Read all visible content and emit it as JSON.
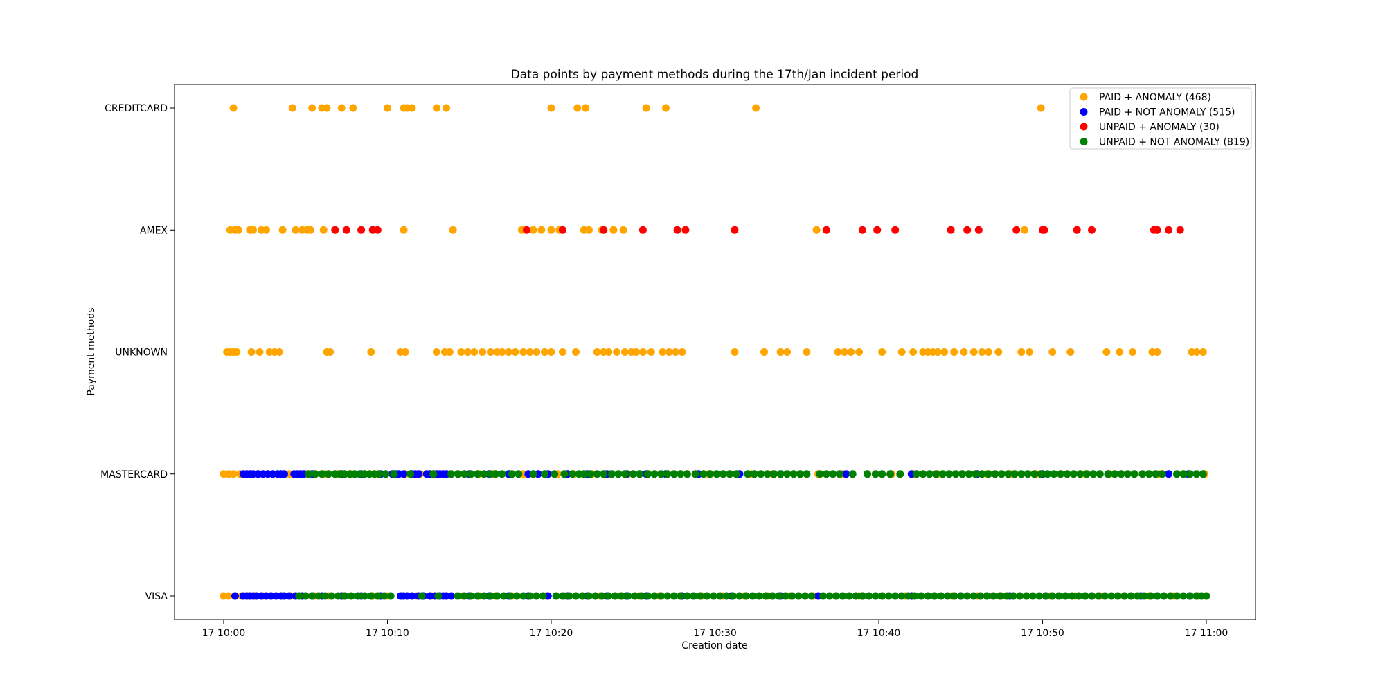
{
  "chart_data": {
    "type": "scatter",
    "title": "Data points by payment methods during the 17th/Jan incident period",
    "xlabel": "Creation date",
    "ylabel": "Payment methods",
    "x_unit": "minutes after 17 10:00",
    "xlim": [
      -3,
      63
    ],
    "x_ticks": [
      {
        "value": 0,
        "label": "17 10:00"
      },
      {
        "value": 10,
        "label": "17 10:10"
      },
      {
        "value": 20,
        "label": "17 10:20"
      },
      {
        "value": 30,
        "label": "17 10:30"
      },
      {
        "value": 40,
        "label": "17 10:40"
      },
      {
        "value": 50,
        "label": "17 10:50"
      },
      {
        "value": 60,
        "label": "17 11:00"
      }
    ],
    "categories": [
      "VISA",
      "MASTERCARD",
      "UNKNOWN",
      "AMEX",
      "CREDITCARD"
    ],
    "grid": false,
    "legend_position": "top-right",
    "series": [
      {
        "name": "PAID + ANOMALY (468)",
        "color": "#ffa500",
        "points": {
          "CREDITCARD": [
            0.6,
            4.2,
            5.4,
            6.0,
            6.3,
            7.2,
            7.9,
            10.0,
            11.0,
            11.2,
            11.5,
            13.0,
            13.6,
            20.0,
            21.6,
            22.1,
            25.8,
            27.0,
            32.5,
            49.9
          ],
          "AMEX": [
            0.4,
            0.7,
            0.9,
            1.6,
            1.8,
            2.3,
            2.6,
            3.6,
            4.4,
            4.8,
            5.1,
            5.3,
            6.1,
            11.0,
            14.0,
            18.2,
            18.9,
            19.4,
            20.0,
            20.5,
            22.0,
            22.3,
            23.1,
            23.8,
            24.4,
            36.2,
            48.9,
            57.0
          ],
          "UNKNOWN": [
            0.2,
            0.4,
            0.6,
            0.8,
            1.7,
            2.2,
            2.8,
            3.1,
            3.4,
            6.3,
            6.5,
            9.0,
            10.8,
            11.1,
            13.0,
            13.5,
            13.8,
            14.5,
            14.9,
            15.3,
            15.8,
            16.3,
            16.7,
            17.0,
            17.4,
            17.8,
            18.3,
            18.7,
            19.1,
            19.6,
            20.0,
            20.7,
            21.5,
            22.8,
            23.2,
            23.5,
            24.0,
            24.5,
            24.9,
            25.2,
            25.6,
            26.1,
            26.8,
            27.2,
            27.6,
            28.0,
            31.2,
            33.0,
            34.0,
            34.4,
            35.6,
            37.5,
            37.9,
            38.3,
            38.8,
            40.2,
            41.4,
            42.1,
            42.7,
            43.0,
            43.3,
            43.6,
            44.0,
            44.6,
            45.2,
            45.8,
            46.3,
            46.7,
            47.3,
            48.7,
            49.2,
            50.6,
            51.7,
            53.9,
            54.7,
            55.5,
            56.7,
            57.0,
            59.1,
            59.4,
            59.8
          ],
          "MASTERCARD": [
            0.0,
            0.3,
            0.6,
            1.0,
            1.4,
            2.1,
            2.7,
            3.3,
            4.0,
            4.6,
            5.1,
            5.6,
            6.2,
            7.0,
            7.8,
            8.6,
            9.4,
            10.3,
            11.1,
            12.0,
            12.9,
            13.8,
            14.7,
            15.6,
            16.5,
            17.4,
            18.3,
            19.2,
            20.4,
            21.4,
            22.5,
            23.6,
            24.7,
            25.9,
            27.1,
            28.3,
            29.6,
            30.9,
            32.2,
            33.5,
            34.8,
            36.3,
            37.8,
            39.3,
            40.8,
            42.1,
            43.6,
            45.1,
            46.6,
            48.1,
            49.6,
            51.1,
            52.6,
            54.1,
            55.6,
            57.1,
            58.6,
            59.9
          ],
          "VISA": [
            0.0,
            0.3,
            0.7,
            1.1,
            1.5,
            1.9,
            2.4,
            2.9,
            3.5,
            4.1,
            4.8,
            5.6,
            6.4,
            7.3,
            8.2,
            9.1,
            10.0,
            10.9,
            11.8,
            12.7,
            13.6,
            14.6,
            15.6,
            16.6,
            17.6,
            18.6,
            19.7,
            20.8,
            21.9,
            23.0,
            24.2,
            25.4,
            26.6,
            27.9,
            29.2,
            30.5,
            31.8,
            33.2,
            34.6,
            36.0,
            37.4,
            38.8,
            40.2,
            41.6,
            43.0,
            44.5,
            46.0,
            47.5,
            49.0,
            50.5,
            52.0,
            53.5,
            55.0,
            56.5,
            58.0,
            59.5
          ]
        }
      },
      {
        "name": "PAID + NOT ANOMALY (515)",
        "color": "#0000ff",
        "points": {
          "CREDITCARD": [],
          "AMEX": [],
          "UNKNOWN": [],
          "MASTERCARD": [
            1.2,
            1.4,
            1.6,
            1.8,
            2.1,
            2.4,
            2.7,
            3.0,
            3.3,
            3.5,
            3.7,
            4.3,
            4.5,
            4.7,
            4.9,
            5.4,
            7.2,
            8.4,
            9.6,
            10.3,
            10.5,
            10.7,
            11.0,
            11.5,
            11.7,
            11.9,
            12.4,
            12.6,
            13.0,
            13.2,
            13.4,
            13.6,
            15.0,
            16.2,
            17.4,
            18.6,
            19.2,
            19.8,
            21.0,
            22.2,
            23.4,
            24.6,
            25.8,
            27.0,
            29.0,
            31.5,
            34.0,
            38.0,
            42.0,
            46.0,
            50.0,
            54.0,
            57.7,
            58.9
          ],
          "VISA": [
            0.7,
            1.2,
            1.4,
            1.6,
            1.8,
            2.0,
            2.3,
            2.6,
            2.9,
            3.2,
            3.5,
            3.7,
            4.0,
            4.4,
            4.8,
            5.4,
            6.0,
            7.2,
            8.4,
            9.6,
            10.8,
            11.0,
            11.2,
            11.5,
            11.9,
            12.2,
            12.6,
            12.9,
            13.2,
            13.4,
            13.6,
            13.9,
            15.0,
            16.2,
            17.4,
            18.6,
            19.8,
            21.0,
            22.2,
            23.4,
            24.6,
            25.8,
            28.0,
            31.0,
            34.0,
            36.3,
            39.0,
            42.0,
            45.0,
            48.0,
            50.2,
            53.0,
            56.0,
            59.0
          ]
        }
      },
      {
        "name": "UNPAID + ANOMALY (30)",
        "color": "#ff0000",
        "points": {
          "CREDITCARD": [],
          "AMEX": [
            6.8,
            7.5,
            8.4,
            9.1,
            9.4,
            18.5,
            20.7,
            23.2,
            25.6,
            27.7,
            28.2,
            31.2,
            36.8,
            39.0,
            39.9,
            41.0,
            44.4,
            45.4,
            46.1,
            48.4,
            50.0,
            50.1,
            52.1,
            53.0,
            56.8,
            57.0,
            57.7,
            58.4
          ],
          "UNKNOWN": [],
          "MASTERCARD": [],
          "VISA": []
        }
      },
      {
        "name": "UNPAID + NOT ANOMALY (819)",
        "color": "#008000",
        "points": {
          "CREDITCARD": [],
          "AMEX": [],
          "UNKNOWN": [],
          "MASTERCARD": [
            5.2,
            5.6,
            6.0,
            6.4,
            6.8,
            7.1,
            7.4,
            7.7,
            8.0,
            8.3,
            8.6,
            8.9,
            9.2,
            9.5,
            9.9,
            10.4,
            11.4,
            12.8,
            13.9,
            14.3,
            14.7,
            15.1,
            15.5,
            15.9,
            16.3,
            16.6,
            17.0,
            17.6,
            18.0,
            18.9,
            19.6,
            20.2,
            20.8,
            21.3,
            21.7,
            22.0,
            22.4,
            22.8,
            23.2,
            23.7,
            24.1,
            24.5,
            25.0,
            25.4,
            25.9,
            26.3,
            26.7,
            27.1,
            27.5,
            27.9,
            28.3,
            28.8,
            29.3,
            29.7,
            30.1,
            30.5,
            30.9,
            31.3,
            32.0,
            32.4,
            32.8,
            33.2,
            33.6,
            34.0,
            34.4,
            34.8,
            35.2,
            35.6,
            36.4,
            36.8,
            37.2,
            37.6,
            38.4,
            39.3,
            39.8,
            40.2,
            40.7,
            41.3,
            42.3,
            42.7,
            43.1,
            43.5,
            43.9,
            44.3,
            44.7,
            45.1,
            45.5,
            45.9,
            46.3,
            46.7,
            47.1,
            47.5,
            47.9,
            48.3,
            48.7,
            49.1,
            49.5,
            49.9,
            50.3,
            50.7,
            51.1,
            51.5,
            51.9,
            52.3,
            52.7,
            53.1,
            53.5,
            54.0,
            54.4,
            54.8,
            55.2,
            55.6,
            56.1,
            56.5,
            56.9,
            57.3,
            58.2,
            58.6,
            59.0,
            59.4,
            59.8
          ],
          "VISA": [
            4.6,
            5.0,
            5.4,
            5.8,
            6.2,
            6.6,
            7.0,
            7.4,
            7.8,
            8.2,
            8.6,
            9.0,
            9.4,
            9.8,
            10.2,
            12.1,
            13.1,
            14.3,
            14.7,
            15.1,
            15.5,
            15.9,
            16.3,
            16.7,
            17.1,
            17.5,
            17.9,
            18.3,
            18.7,
            19.1,
            19.5,
            20.3,
            20.7,
            21.1,
            21.5,
            21.9,
            22.3,
            22.7,
            23.1,
            23.5,
            23.9,
            24.3,
            24.7,
            25.1,
            25.5,
            25.9,
            26.3,
            26.7,
            27.1,
            27.5,
            27.9,
            28.3,
            28.7,
            29.1,
            29.5,
            29.9,
            30.3,
            30.7,
            31.1,
            31.5,
            31.9,
            32.3,
            32.7,
            33.1,
            33.5,
            33.9,
            34.3,
            34.7,
            35.1,
            35.5,
            35.9,
            36.6,
            37.0,
            37.4,
            37.8,
            38.2,
            38.6,
            39.0,
            39.4,
            39.8,
            40.2,
            40.6,
            41.0,
            41.4,
            41.8,
            42.2,
            42.6,
            43.0,
            43.4,
            43.8,
            44.2,
            44.6,
            45.0,
            45.4,
            45.8,
            46.2,
            46.6,
            47.0,
            47.4,
            47.8,
            48.2,
            48.6,
            49.0,
            49.4,
            49.8,
            50.2,
            50.6,
            51.0,
            51.4,
            51.8,
            52.2,
            52.6,
            53.0,
            53.4,
            53.8,
            54.2,
            54.6,
            55.0,
            55.4,
            55.8,
            56.2,
            56.6,
            57.0,
            57.4,
            57.8,
            58.2,
            58.6,
            59.0,
            59.4,
            59.7,
            60.0
          ]
        }
      }
    ]
  }
}
